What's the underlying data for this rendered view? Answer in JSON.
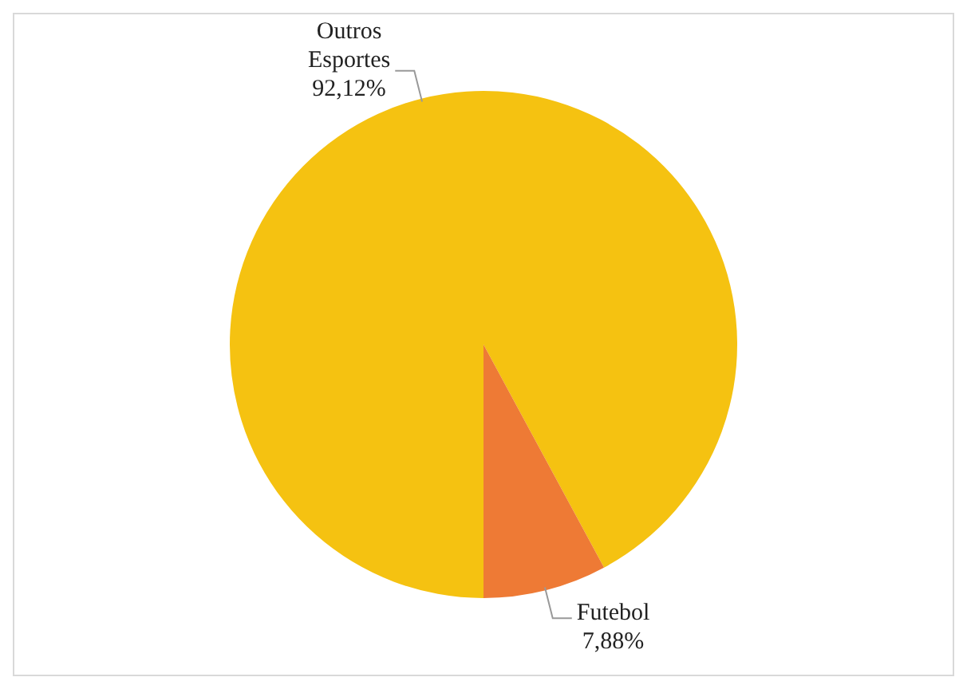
{
  "chart_data": {
    "type": "pie",
    "categories": [
      "Outros Esportes",
      "Futebol"
    ],
    "values": [
      92.12,
      7.88
    ],
    "value_labels": [
      "92,12%",
      "7,88%"
    ],
    "colors": [
      "#f5c211",
      "#ee7a35"
    ],
    "legend": false
  }
}
